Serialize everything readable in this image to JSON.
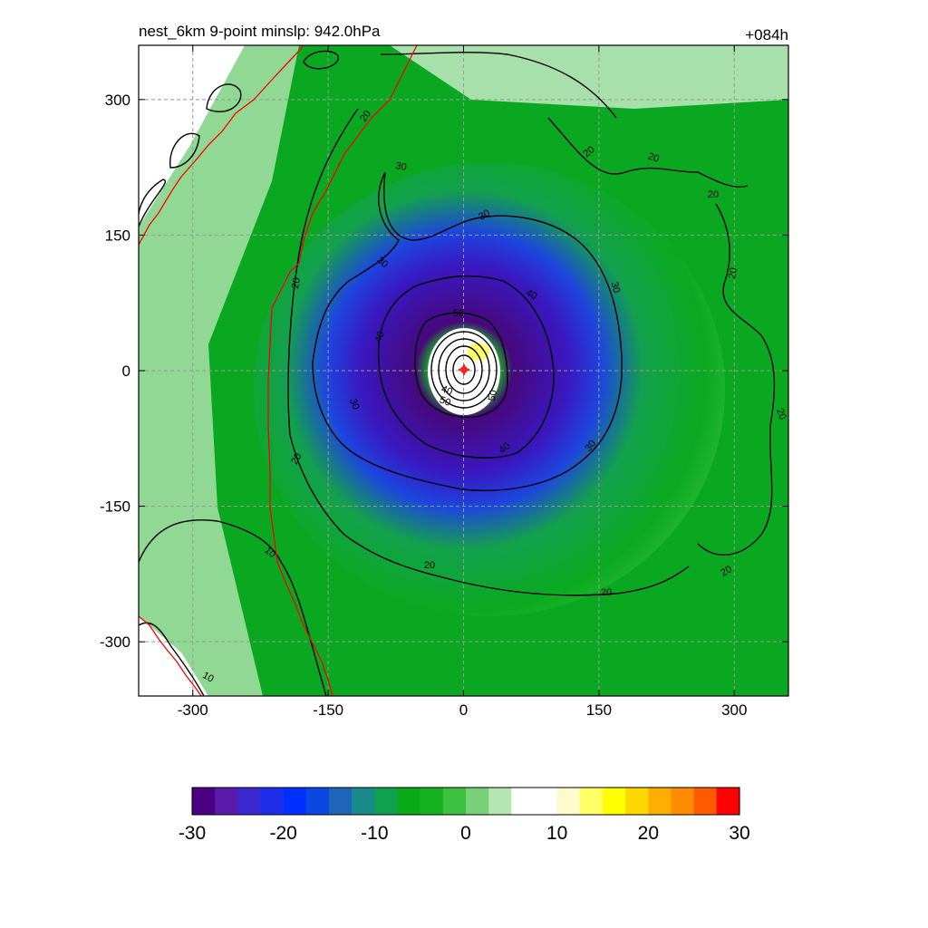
{
  "title_left": "nest_6km  9-point minslp: 942.0hPa",
  "title_right": "+084h",
  "chart_data": {
    "type": "heatmap",
    "xlim": [
      -360,
      360
    ],
    "ylim": [
      -360,
      360
    ],
    "x_ticks": [
      -300,
      -150,
      0,
      150,
      300
    ],
    "y_ticks": [
      -300,
      -150,
      0,
      150,
      300
    ],
    "x_tick_labels": [
      "-300",
      "-150",
      "0",
      "150",
      "300"
    ],
    "y_tick_labels": [
      "-300",
      "-150",
      "0",
      "150",
      "300"
    ],
    "grid": true,
    "colorbar": {
      "range": [
        -30,
        30
      ],
      "ticks": [
        -30,
        -20,
        -10,
        0,
        10,
        20,
        30
      ],
      "tick_labels": [
        "-30",
        "-20",
        "-10",
        "0",
        "10",
        "20",
        "30"
      ],
      "colors": [
        "#4a0080",
        "#5a1aaa",
        "#3c28d0",
        "#1e2ee8",
        "#0030ff",
        "#0a48e0",
        "#1e64b8",
        "#188a8a",
        "#10a050",
        "#08aa18",
        "#14b220",
        "#3cc040",
        "#78d078",
        "#b4e6b4",
        "#ffffff",
        "#ffffff",
        "#fffacc",
        "#ffff66",
        "#ffff00",
        "#ffd700",
        "#ffae00",
        "#ff8c00",
        "#ff5a00",
        "#ff0000"
      ]
    },
    "center_marker": {
      "x": 0,
      "y": 0
    },
    "contours": [
      {
        "level": 10,
        "labels": [
          "10",
          "10"
        ]
      },
      {
        "level": 20,
        "labels": [
          "20",
          "20",
          "20",
          "20",
          "20",
          "20",
          "20",
          "20",
          "20",
          "20",
          "20"
        ]
      },
      {
        "level": 30,
        "labels": [
          "30",
          "30",
          "30",
          "30",
          "30",
          "30"
        ]
      },
      {
        "level": 40,
        "labels": [
          "40",
          "40",
          "40",
          "40"
        ]
      },
      {
        "level": 50,
        "labels": [
          "50",
          "50",
          "50"
        ]
      }
    ]
  }
}
